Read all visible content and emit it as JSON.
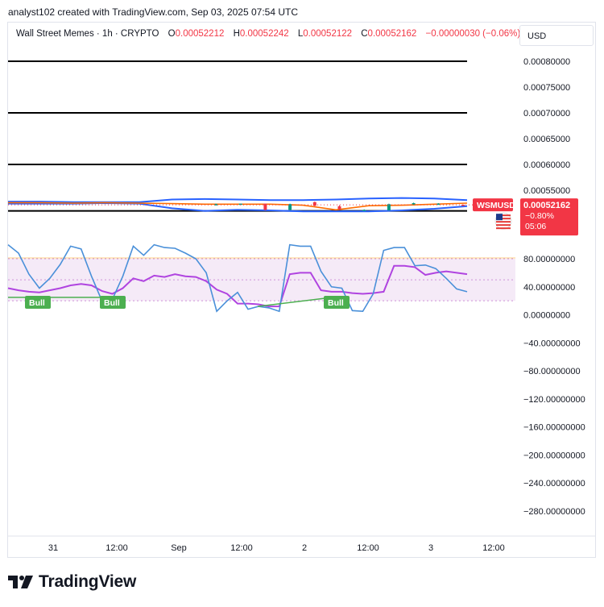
{
  "header": {
    "attribution": "analyst102 created with TradingView.com, Sep 03, 2025 07:54 UTC"
  },
  "legend": {
    "symbol": "Wall Street Memes · 1h · CRYPTO",
    "open_label": "O",
    "open": "0.00052212",
    "high_label": "H",
    "high": "0.00052242",
    "low_label": "L",
    "low": "0.00052122",
    "close_label": "C",
    "close": "0.00052162",
    "change": "−0.00000030 (−0.06%)"
  },
  "currency": "USD",
  "price_tag": {
    "ticker": "WSMUSD",
    "price": "0.00052162",
    "change": "−0.80%",
    "countdown": "05:06",
    "flag_icon": "us-flag-icon"
  },
  "colors": {
    "up": "#089981",
    "down": "#f23645",
    "bollinger": "#2962ff",
    "basis": "#ff6d00",
    "stoch_k": "#2962ff",
    "rsi": "#b044e0",
    "bull_label": "#4caf50",
    "rsi_band": "#f3e5f5"
  },
  "footer": {
    "brand": "TradingView",
    "logo_icon": "tradingview-logo-icon"
  },
  "chart_data": [
    {
      "type": "line",
      "panel": "price",
      "ylim": [
        0.0005,
        0.00082
      ],
      "y_tick_labels": [
        "0.00080000",
        "0.00075000",
        "0.00070000",
        "0.00065000",
        "0.00060000",
        "0.00055000"
      ],
      "y_ticks": [
        0.0008,
        0.00075,
        0.0007,
        0.00065,
        0.0006,
        0.00055
      ],
      "horizontal_lines": [
        0.0008,
        0.0007,
        0.0006,
        0.00051
      ],
      "bollinger_upper": [
        0.000528,
        0.000528,
        0.000527,
        0.000527,
        0.000527,
        0.000532,
        0.000533,
        0.000532,
        0.000531,
        0.000531,
        0.000532,
        0.000534,
        0.000535,
        0.000534,
        0.000531
      ],
      "bollinger_lower": [
        0.000524,
        0.000524,
        0.000524,
        0.000525,
        0.000524,
        0.000515,
        0.00051,
        0.000512,
        0.000511,
        0.000509,
        0.000509,
        0.000509,
        0.000511,
        0.000514,
        0.000519
      ],
      "basis": [
        0.000526,
        0.000526,
        0.000525,
        0.000526,
        0.000525,
        0.000524,
        0.000523,
        0.000523,
        0.000523,
        0.000521,
        0.000512,
        0.00052,
        0.000521,
        0.000523,
        0.000525
      ],
      "candles": [
        {
          "o": 0.000523,
          "c": 0.000523,
          "h": 0.000524,
          "l": 0.000521
        },
        {
          "o": 0.000524,
          "c": 0.000524,
          "h": 0.000524,
          "l": 0.000523
        },
        {
          "o": 0.000524,
          "c": 0.000512,
          "h": 0.000524,
          "l": 0.000511
        },
        {
          "o": 0.000512,
          "c": 0.000523,
          "h": 0.000524,
          "l": 0.000511
        },
        {
          "o": 0.000527,
          "c": 0.00052,
          "h": 0.000528,
          "l": 0.000519
        },
        {
          "o": 0.000519,
          "c": 0.000513,
          "h": 0.000521,
          "l": 0.000512
        },
        {
          "o": 0.000512,
          "c": 0.000512,
          "h": 0.000513,
          "l": 0.000511
        },
        {
          "o": 0.000511,
          "c": 0.000523,
          "h": 0.000524,
          "l": 0.000511
        },
        {
          "o": 0.000523,
          "c": 0.000525,
          "h": 0.000526,
          "l": 0.000522
        },
        {
          "o": 0.000524,
          "c": 0.000524,
          "h": 0.000525,
          "l": 0.000523
        },
        {
          "o": 0.000522,
          "c": 0.000521,
          "h": 0.000522,
          "l": 0.000521
        }
      ],
      "last_price": 0.00052162
    },
    {
      "type": "line",
      "panel": "oscillator",
      "ylim": [
        -300,
        100
      ],
      "y_tick_labels": [
        "80.00000000",
        "40.00000000",
        "0.00000000",
        "−40.00000000",
        "−80.00000000",
        "−120.00000000",
        "−160.00000000",
        "−200.00000000",
        "−240.00000000",
        "−280.00000000"
      ],
      "y_ticks": [
        80,
        40,
        0,
        -40,
        -80,
        -120,
        -160,
        -200,
        -240,
        -280
      ],
      "band": [
        20,
        80
      ],
      "series": [
        {
          "name": "",
          "values": [
            100,
            88,
            58,
            38,
            52,
            72,
            98,
            94,
            55,
            20,
            22,
            55,
            98,
            85,
            100,
            96,
            95,
            88,
            80,
            60,
            5,
            20,
            32,
            8,
            12,
            10,
            5,
            100,
            98,
            98,
            62,
            40,
            38,
            6,
            5,
            30,
            92,
            96,
            96,
            70,
            71,
            66,
            52,
            37,
            33
          ]
        },
        {
          "name": "",
          "values": [
            38,
            35,
            33,
            32,
            35,
            38,
            42,
            44,
            42,
            34,
            30,
            38,
            52,
            48,
            56,
            54,
            58,
            55,
            54,
            48,
            36,
            30,
            16,
            16,
            15,
            12,
            12,
            58,
            60,
            60,
            35,
            33,
            33,
            31,
            30,
            31,
            33,
            70,
            70,
            68,
            57,
            60,
            62,
            60,
            58
          ]
        }
      ],
      "annotations": [
        "Bull",
        "Bull",
        "Bull"
      ]
    }
  ],
  "x_axis": {
    "tick_labels": [
      "31",
      "12:00",
      "Sep",
      "12:00",
      "2",
      "12:00",
      "3",
      "12:00"
    ]
  }
}
